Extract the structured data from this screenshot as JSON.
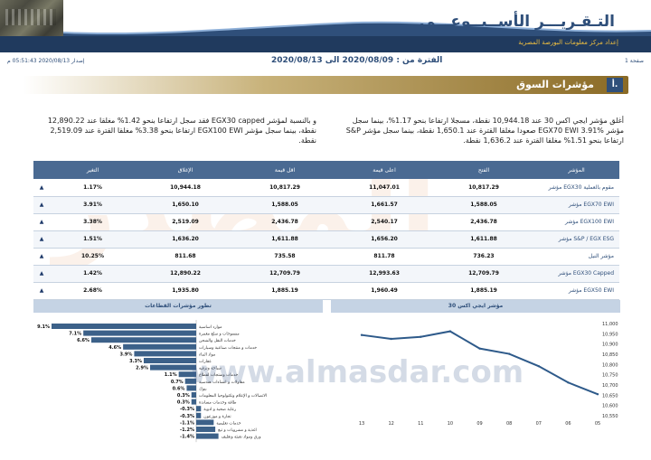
{
  "header": {
    "title": "التـقـريـــر الأســبــوعـــي",
    "subtitle": "إعداد مركز معلومات البورصة المصرية"
  },
  "info": {
    "page": "صفحة 1",
    "period": "الفترة من : 2020/08/09 الى 2020/08/13",
    "issued": "إصدار 2020/08/13 05:51:43 م"
  },
  "section": {
    "number": "أ.",
    "title": "مؤشرات السوق"
  },
  "paragraphs": {
    "right": "أغلق مؤشر ايجي اكس 30 عند 10,944.18 نقطة، مسجلا ارتفاعا بنحو 1.17%، بينما سجل مؤشر EGX70 EWI 3.91% صعودا مغلقا القترة عند 1,650.1 نقطة، بينما سجل مؤشر S&P ارتفاعا بنحو 1.51% مغلقا القترة عند 1,636.2 نقطة.",
    "left": "و بالنسبة لمؤشر EGX30 capped فقد سجل ارتفاعا بنحو 1.42% مغلقا عند 12,890.22 نقطة، بينما سجل مؤشر EGX100 EWI ارتفاعا بنحو 3.38% مغلقا القترة عند 2,519.09 نقطة."
  },
  "table": {
    "headers": [
      "المؤشر",
      "الفتح",
      "اعلى قيمة",
      "اقل قيمة",
      "الإغلاق",
      "التغير",
      ""
    ],
    "rows": [
      {
        "name": "مؤشر EGX30 مقوم بالعملية",
        "open": "10,817.29",
        "high": "11,047.01",
        "low": "10,817.29",
        "close": "10,944.18",
        "change": "1.17%",
        "arrow": "▲"
      },
      {
        "name": "مؤشر EGX70 EWI",
        "open": "1,588.05",
        "high": "1,661.57",
        "low": "1,588.05",
        "close": "1,650.10",
        "change": "3.91%",
        "arrow": "▲"
      },
      {
        "name": "مؤشر EGX100 EWI",
        "open": "2,436.78",
        "high": "2,540.17",
        "low": "2,436.78",
        "close": "2,519.09",
        "change": "3.38%",
        "arrow": "▲"
      },
      {
        "name": "مؤشر S&P / EGX ESG",
        "open": "1,611.88",
        "high": "1,656.20",
        "low": "1,611.88",
        "close": "1,636.20",
        "change": "1.51%",
        "arrow": "▲"
      },
      {
        "name": "مؤشر النيل",
        "open": "736.23",
        "high": "811.78",
        "low": "735.58",
        "close": "811.68",
        "change": "10.25%",
        "arrow": "▲"
      },
      {
        "name": "مؤشر EGX30 Capped",
        "open": "12,709.79",
        "high": "12,993.63",
        "low": "12,709.79",
        "close": "12,890.22",
        "change": "1.42%",
        "arrow": "▲"
      },
      {
        "name": "مؤشر EGX50 EWI",
        "open": "1,885.19",
        "high": "1,960.49",
        "low": "1,885.19",
        "close": "1,935.80",
        "change": "2.68%",
        "arrow": "▲"
      }
    ]
  },
  "watermark": {
    "text": "المصدر",
    "url": "www.almasdar.com"
  },
  "panels": {
    "left_title": "تطور مؤشرات القطاعات",
    "right_title": "مؤشر ايجي اكس 30"
  },
  "chart_data": [
    {
      "type": "bar",
      "title": "تطور مؤشرات القطاعات",
      "categories": [
        "موارد اساسية",
        "منسوجات و سلع معمرة",
        "خدمات النقل والشحن",
        "خدمات و منتجات صناعية وسيارات",
        "مواد البناء",
        "عقارات",
        "سياحة وترفيه",
        "خدمات ومنتجات لقطاع",
        "مقاولات و انشاءات هندسية",
        "بنوك",
        "الاتصالات و الإعلام وتكنولوجيا المعلومات",
        "طاقة وخدمات مساندة",
        "رعاية صحية و ادوية",
        "تجارة و موزعون",
        "خدمات تعليمية",
        "اغذية و مشروبات و تبغ",
        "ورق ومواد تعبئة وتغليف"
      ],
      "values": [
        9.1,
        7.1,
        6.6,
        4.6,
        3.9,
        3.3,
        2.9,
        1.1,
        0.7,
        0.6,
        0.3,
        0.3,
        -0.3,
        -0.3,
        -1.1,
        -1.2,
        -1.4
      ],
      "labels": [
        "9.1%",
        "7.1%",
        "6.6%",
        "4.6%",
        "3.9%",
        "3.3%",
        "2.9%",
        "1.1%",
        "0.7%",
        "0.6%",
        "0.3%",
        "0.3%",
        "-0.3%",
        "-0.3%",
        "-1.1%",
        "-1.2%",
        "-1.4%"
      ],
      "color": "#3c6189"
    },
    {
      "type": "line",
      "title": "مؤشر ايجي اكس 30",
      "x": [
        "13",
        "12",
        "11",
        "10",
        "09",
        "08",
        "07",
        "06",
        "05"
      ],
      "y": [
        10944,
        10925,
        10935,
        10962,
        10878,
        10852,
        10792,
        10712,
        10655
      ],
      "ylim": [
        10550,
        11000
      ],
      "yticks": [
        "11,000",
        "10,950",
        "10,900",
        "10,850",
        "10,800",
        "10,750",
        "10,700",
        "10,650",
        "10,600",
        "10,550"
      ],
      "color": "#2e5a8a"
    }
  ]
}
